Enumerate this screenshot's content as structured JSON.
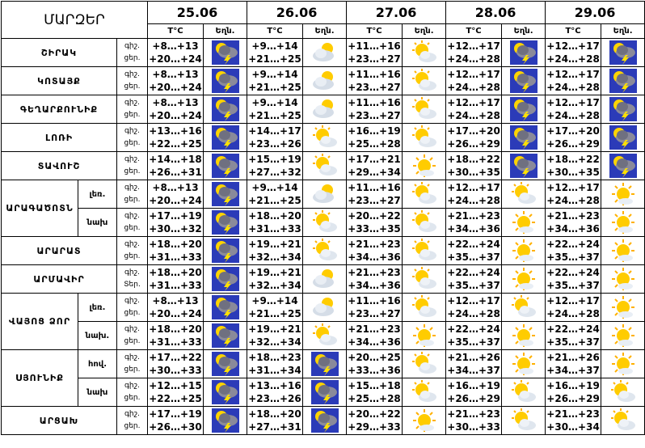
{
  "header": {
    "title": "ՄԱՐԶԵՐ",
    "dates": [
      "25.06",
      "26.06",
      "27.06",
      "28.06",
      "29.06"
    ],
    "temp_label": "T°C",
    "weather_label": "Եղն."
  },
  "regions": [
    {
      "name": "ՇԻՐԱԿ",
      "rows": [
        {
          "periods": [
            "գիշ.",
            "ցեր."
          ],
          "days": [
            [
              "+8…+13",
              "+20…+24"
            ],
            [
              "+9…+14",
              "+21…+25"
            ],
            [
              "+11…+16",
              "+23…+27"
            ],
            [
              "+12…+17",
              "+24…+28"
            ],
            [
              "+12…+17",
              "+24…+28"
            ]
          ]
        }
      ]
    },
    {
      "name": "ԿՈՏԱՅՔ",
      "rows": [
        {
          "periods": [
            "գիշ.",
            "ցեր."
          ],
          "days": [
            [
              "+8…+13",
              "+20…+24"
            ],
            [
              "+9…+14",
              "+21…+25"
            ],
            [
              "+11…+16",
              "+23…+27"
            ],
            [
              "+12…+17",
              "+24…+28"
            ],
            [
              "+12…+17",
              "+24…+28"
            ]
          ]
        }
      ]
    },
    {
      "name": "ԳԵՂԱՐՔՈՒՆԻՔ",
      "rows": [
        {
          "periods": [
            "գիշ.",
            "ցեր."
          ],
          "days": [
            [
              "+8…+13",
              "+20…+24"
            ],
            [
              "+9…+14",
              "+21…+25"
            ],
            [
              "+11…+16",
              "+23…+27"
            ],
            [
              "+12…+17",
              "+24…+28"
            ],
            [
              "+12…+17",
              "+24…+28"
            ]
          ]
        }
      ]
    },
    {
      "name": "ԼՈՌԻ",
      "rows": [
        {
          "periods": [
            "գիշ.",
            "ցեր."
          ],
          "days": [
            [
              "+13…+16",
              "+22…+25"
            ],
            [
              "+14…+17",
              "+23…+26"
            ],
            [
              "+16…+19",
              "+25…+28"
            ],
            [
              "+17…+20",
              "+26…+29"
            ],
            [
              "+17…+20",
              "+26…+29"
            ]
          ]
        }
      ]
    },
    {
      "name": "ՏԱՎՈՒՇ",
      "rows": [
        {
          "periods": [
            "գիշ.",
            "ցեր."
          ],
          "days": [
            [
              "+14…+18",
              "+26…+31"
            ],
            [
              "+15…+19",
              "+27…+32"
            ],
            [
              "+17…+21",
              "+29…+34"
            ],
            [
              "+18…+22",
              "+30…+35"
            ],
            [
              "+18…+22",
              "+30…+35"
            ]
          ]
        }
      ]
    },
    {
      "name": "ԱՐԱԳԱԾՈՏՆ",
      "rows": [
        {
          "sub": "լեռ.",
          "periods": [
            "գիշ.",
            "ցեր."
          ],
          "days": [
            [
              "+8…+13",
              "+20…+24"
            ],
            [
              "+9…+14",
              "+21…+25"
            ],
            [
              "+11…+16",
              "+23…+27"
            ],
            [
              "+12…+17",
              "+24…+28"
            ],
            [
              "+12…+17",
              "+24…+28"
            ]
          ]
        },
        {
          "sub": "նախ",
          "periods": [
            "գիշ.",
            "ցեր."
          ],
          "days": [
            [
              "+17…+19",
              "+30…+32"
            ],
            [
              "+18…+20",
              "+31…+33"
            ],
            [
              "+20…+22",
              "+33…+35"
            ],
            [
              "+21…+23",
              "+34…+36"
            ],
            [
              "+21…+23",
              "+34…+36"
            ]
          ]
        }
      ]
    },
    {
      "name": "ԱՐԱՐԱՏ",
      "rows": [
        {
          "periods": [
            "գիշ.",
            "ցեր."
          ],
          "days": [
            [
              "+18…+20",
              "+31…+33"
            ],
            [
              "+19…+21",
              "+32…+34"
            ],
            [
              "+21…+23",
              "+34…+36"
            ],
            [
              "+22…+24",
              "+35…+37"
            ],
            [
              "+22…+24",
              "+35…+37"
            ]
          ]
        }
      ]
    },
    {
      "name": "ԱՐՄԱՎԻՐ",
      "rows": [
        {
          "periods": [
            "գիշ.",
            "Տեր."
          ],
          "days": [
            [
              "+18…+20",
              "+31…+33"
            ],
            [
              "+19…+21",
              "+32…+34"
            ],
            [
              "+21…+23",
              "+34…+36"
            ],
            [
              "+22…+24",
              "+35…+37"
            ],
            [
              "+22…+24",
              "+35…+37"
            ]
          ]
        }
      ]
    },
    {
      "name": "ՎԱՅՈՑ ՁՈՐ",
      "rows": [
        {
          "sub": "լեռ.",
          "periods": [
            "գիշ.",
            "ցեր."
          ],
          "days": [
            [
              "+8…+13",
              "+20…+24"
            ],
            [
              "+9…+14",
              "+21…+25"
            ],
            [
              "+11…+16",
              "+23…+27"
            ],
            [
              "+12…+17",
              "+24…+28"
            ],
            [
              "+12…+17",
              "+24…+28"
            ]
          ]
        },
        {
          "sub": "նախ.",
          "periods": [
            "գիշ.",
            "ցեր."
          ],
          "days": [
            [
              "+18…+20",
              "+31…+33"
            ],
            [
              "+19…+21",
              "+32…+34"
            ],
            [
              "+21…+23",
              "+34…+36"
            ],
            [
              "+22…+24",
              "+35…+37"
            ],
            [
              "+22…+24",
              "+35…+37"
            ]
          ]
        }
      ]
    },
    {
      "name": "ՍՅՈՒՆԻՔ",
      "rows": [
        {
          "sub": "հով.",
          "periods": [
            "գիշ.",
            "ցեր."
          ],
          "days": [
            [
              "+17…+22",
              "+30…+33"
            ],
            [
              "+18…+23",
              "+31…+34"
            ],
            [
              "+20…+25",
              "+33…+36"
            ],
            [
              "+21…+26",
              "+34…+37"
            ],
            [
              "+21…+26",
              "+34…+37"
            ]
          ]
        },
        {
          "sub": "նախ",
          "periods": [
            "գիշ.",
            "ցեր."
          ],
          "days": [
            [
              "+12…+15",
              "+22…+25"
            ],
            [
              "+13…+16",
              "+23…+26"
            ],
            [
              "+15…+18",
              "+25…+28"
            ],
            [
              "+16…+19",
              "+26…+29"
            ],
            [
              "+16…+19",
              "+26…+29"
            ]
          ]
        }
      ]
    },
    {
      "name": "ԱՐՑԱԽ",
      "rows": [
        {
          "periods": [
            "գիշ.",
            "ցեր."
          ],
          "days": [
            [
              "+17…+19",
              "+26…+30"
            ],
            [
              "+18…+20",
              "+27…+31"
            ],
            [
              "+20…+22",
              "+29…+33"
            ],
            [
              "+21…+23",
              "+30…+33"
            ],
            [
              "+21…+23",
              "+30…+34"
            ]
          ]
        }
      ]
    }
  ]
}
